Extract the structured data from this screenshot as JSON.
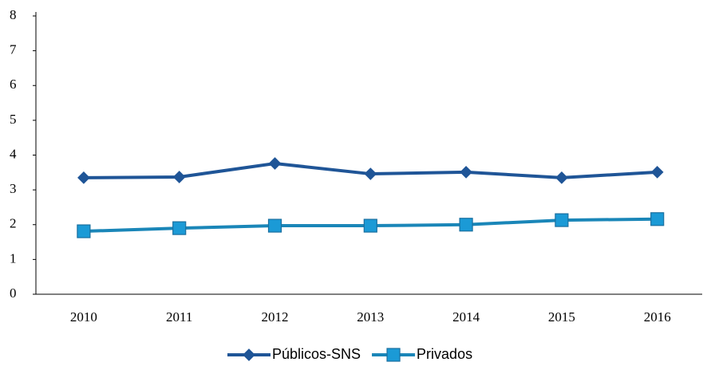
{
  "chart_data": {
    "type": "line",
    "categories": [
      "2010",
      "2011",
      "2012",
      "2013",
      "2014",
      "2015",
      "2016"
    ],
    "series": [
      {
        "name": "Públicos-SNS",
        "color": "#1f5597",
        "marker": "diamond",
        "values": [
          3.35,
          3.37,
          3.76,
          3.46,
          3.51,
          3.35,
          3.51
        ]
      },
      {
        "name": "Privados",
        "color": "#1b9ad6",
        "marker": "square",
        "values": [
          1.81,
          1.9,
          1.97,
          1.97,
          2.0,
          2.13,
          2.16
        ]
      }
    ],
    "ylim": [
      0,
      8
    ],
    "yticks": [
      0,
      1,
      2,
      3,
      4,
      5,
      6,
      7,
      8
    ],
    "grid": false,
    "legend": "bottom"
  }
}
